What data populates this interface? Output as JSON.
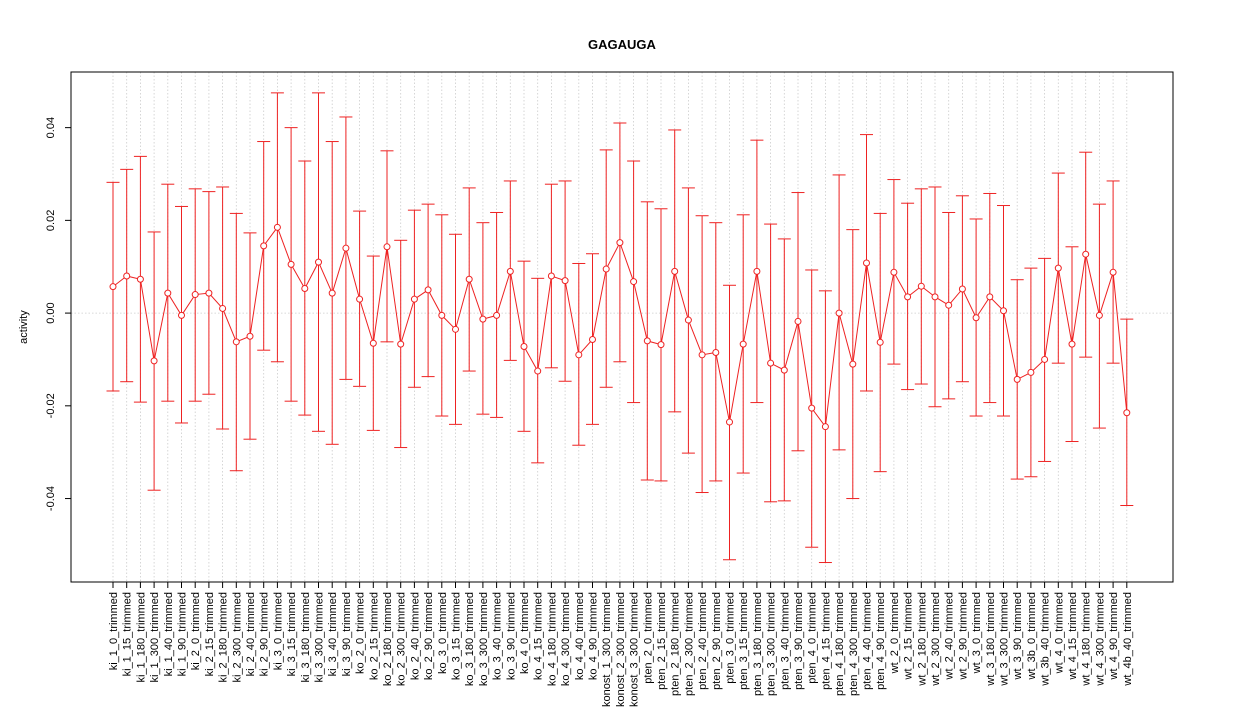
{
  "chart_data": {
    "type": "line",
    "title": "GAGAUGA",
    "xlabel": "",
    "ylabel": "activity",
    "ylim": [
      -0.058,
      0.052
    ],
    "yticks": [
      "-0.04",
      "-0.02",
      "0.00",
      "0.02",
      "0.04"
    ],
    "ytick_values": [
      -0.04,
      -0.02,
      0.0,
      0.02,
      0.04
    ],
    "grid": true,
    "reference_line": 0,
    "colors": {
      "series": "#ee2222",
      "grid": "#cccccc",
      "axis": "#000000"
    },
    "categories": [
      "ki_1_0_trimmed",
      "ki_1_15_trimmed",
      "ki_1_180_trimmed",
      "ki_1_300_trimmed",
      "ki_1_40_trimmed",
      "ki_1_90_trimmed",
      "ki_2_0_trimmed",
      "ki_2_15_trimmed",
      "ki_2_180_trimmed",
      "ki_2_300_trimmed",
      "ki_2_40_trimmed",
      "ki_2_90_trimmed",
      "ki_3_0_trimmed",
      "ki_3_15_trimmed",
      "ki_3_180_trimmed",
      "ki_3_300_trimmed",
      "ki_3_40_trimmed",
      "ki_3_90_trimmed",
      "ko_2_0_trimmed",
      "ko_2_15_trimmed",
      "ko_2_180_trimmed",
      "ko_2_300_trimmed",
      "ko_2_40_trimmed",
      "ko_2_90_trimmed",
      "ko_3_0_trimmed",
      "ko_3_15_trimmed",
      "ko_3_180_trimmed",
      "ko_3_300_trimmed",
      "ko_3_40_trimmed",
      "ko_3_90_trimmed",
      "ko_4_0_trimmed",
      "ko_4_15_trimmed",
      "ko_4_180_trimmed",
      "ko_4_300_trimmed",
      "ko_4_40_trimmed",
      "ko_4_90_trimmed",
      "konost_1_300_trimmed",
      "konost_2_300_trimmed",
      "konost_3_300_trimmed",
      "pten_2_0_trimmed",
      "pten_2_15_trimmed",
      "pten_2_180_trimmed",
      "pten_2_300_trimmed",
      "pten_2_40_trimmed",
      "pten_2_90_trimmed",
      "pten_3_0_trimmed",
      "pten_3_15_trimmed",
      "pten_3_180_trimmed",
      "pten_3_300_trimmed",
      "pten_3_40_trimmed",
      "pten_3_90_trimmed",
      "pten_4_0_trimmed",
      "pten_4_15_trimmed",
      "pten_4_180_trimmed",
      "pten_4_300_trimmed",
      "pten_4_40_trimmed",
      "pten_4_90_trimmed",
      "wt_2_0_trimmed",
      "wt_2_15_trimmed",
      "wt_2_180_trimmed",
      "wt_2_300_trimmed",
      "wt_2_40_trimmed",
      "wt_2_90_trimmed",
      "wt_3_0_trimmed",
      "wt_3_180_trimmed",
      "wt_3_300_trimmed",
      "wt_3_90_trimmed",
      "wt_3b_0_trimmed",
      "wt_3b_40_trimmed",
      "wt_4_0_trimmed",
      "wt_4_15_trimmed",
      "wt_4_180_trimmed",
      "wt_4_300_trimmed",
      "wt_4_90_trimmed",
      "wt_4b_40_trimmed"
    ],
    "series": [
      {
        "values": [
          0.0057,
          0.008,
          0.0073,
          -0.0103,
          0.0043,
          -0.0005,
          0.004,
          0.0043,
          0.001,
          -0.0062,
          -0.005,
          0.0145,
          0.0185,
          0.0105,
          0.0053,
          0.011,
          0.0043,
          0.014,
          0.003,
          -0.0065,
          0.0143,
          -0.0067,
          0.003,
          0.005,
          -0.0005,
          -0.0035,
          0.0073,
          -0.0013,
          -0.0005,
          0.009,
          -0.0072,
          -0.0125,
          0.008,
          0.007,
          -0.009,
          -0.0057,
          0.0095,
          0.0152,
          0.0068,
          -0.006,
          -0.0068,
          0.009,
          -0.0015,
          -0.009,
          -0.0085,
          -0.0235,
          -0.0067,
          0.009,
          -0.0108,
          -0.0123,
          -0.0018,
          -0.0205,
          -0.0245,
          0.0,
          -0.011,
          0.0108,
          -0.0063,
          0.0088,
          0.0035,
          0.0058,
          0.0035,
          0.0017,
          0.0052,
          -0.001,
          0.0035,
          0.0005,
          -0.0143,
          -0.0128,
          -0.01,
          0.0097,
          -0.0067,
          0.0127,
          -0.0005,
          0.0088,
          -0.0215
        ],
        "lower": [
          -0.0168,
          -0.0148,
          -0.0192,
          -0.0382,
          -0.019,
          -0.0237,
          -0.019,
          -0.0175,
          -0.025,
          -0.034,
          -0.0272,
          -0.008,
          -0.0105,
          -0.019,
          -0.022,
          -0.0255,
          -0.0283,
          -0.0143,
          -0.0158,
          -0.0253,
          -0.0062,
          -0.029,
          -0.016,
          -0.0137,
          -0.0222,
          -0.024,
          -0.0125,
          -0.0218,
          -0.0225,
          -0.0102,
          -0.0255,
          -0.0323,
          -0.0118,
          -0.0147,
          -0.0285,
          -0.024,
          -0.016,
          -0.0105,
          -0.0193,
          -0.036,
          -0.0362,
          -0.0213,
          -0.0302,
          -0.0387,
          -0.0362,
          -0.0532,
          -0.0345,
          -0.0193,
          -0.0407,
          -0.0405,
          -0.0297,
          -0.0505,
          -0.0538,
          -0.0295,
          -0.04,
          -0.0168,
          -0.0342,
          -0.011,
          -0.0165,
          -0.0153,
          -0.0202,
          -0.0185,
          -0.0148,
          -0.0222,
          -0.0193,
          -0.0222,
          -0.0358,
          -0.0353,
          -0.032,
          -0.0108,
          -0.0277,
          -0.0095,
          -0.0248,
          -0.0108,
          -0.0415
        ],
        "upper": [
          0.0282,
          0.031,
          0.0338,
          0.0175,
          0.0278,
          0.023,
          0.0268,
          0.0262,
          0.0272,
          0.0215,
          0.0173,
          0.037,
          0.0475,
          0.04,
          0.0328,
          0.0475,
          0.037,
          0.0423,
          0.022,
          0.0123,
          0.035,
          0.0157,
          0.0222,
          0.0235,
          0.0212,
          0.017,
          0.027,
          0.0195,
          0.0217,
          0.0285,
          0.0112,
          0.0075,
          0.0278,
          0.0285,
          0.0107,
          0.0128,
          0.0352,
          0.041,
          0.0328,
          0.024,
          0.0225,
          0.0395,
          0.027,
          0.021,
          0.0195,
          0.006,
          0.0212,
          0.0373,
          0.0192,
          0.016,
          0.026,
          0.0093,
          0.0048,
          0.0298,
          0.018,
          0.0385,
          0.0215,
          0.0288,
          0.0237,
          0.0268,
          0.0272,
          0.0217,
          0.0253,
          0.0203,
          0.0258,
          0.0232,
          0.0072,
          0.0097,
          0.0118,
          0.0302,
          0.0143,
          0.0347,
          0.0235,
          0.0285,
          -0.0013
        ]
      }
    ]
  }
}
